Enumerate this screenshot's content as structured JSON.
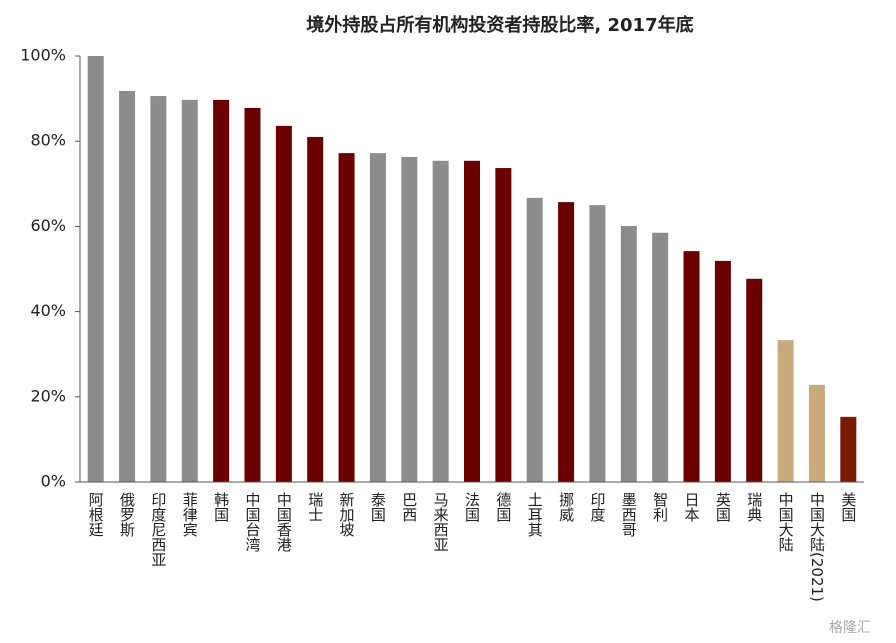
{
  "chart_data": {
    "type": "bar",
    "title": "境外持股占所有机构投资者持股比率, 2017年底",
    "categories": [
      "阿根廷",
      "俄罗斯",
      "印度尼西亚",
      "菲律宾",
      "韩国",
      "中国台湾",
      "中国香港",
      "瑞士",
      "新加坡",
      "泰国",
      "巴西",
      "马来西亚",
      "法国",
      "德国",
      "土耳其",
      "挪威",
      "印度",
      "墨西哥",
      "智利",
      "日本",
      "英国",
      "瑞典",
      "中国大陆",
      "中国大陆(2021)",
      "美国"
    ],
    "values": [
      100,
      91.8,
      90.6,
      89.7,
      89.7,
      87.8,
      83.6,
      81,
      77.2,
      77.2,
      76.3,
      75.4,
      75.4,
      73.7,
      66.7,
      65.7,
      65,
      60.1,
      58.5,
      54.2,
      51.9,
      47.7,
      33.3,
      22.8,
      15.3
    ],
    "colors": [
      "#8c8c8c",
      "#8c8c8c",
      "#8c8c8c",
      "#8c8c8c",
      "#6b0000",
      "#6b0000",
      "#6b0000",
      "#6b0000",
      "#6b0000",
      "#8c8c8c",
      "#8c8c8c",
      "#8c8c8c",
      "#6b0000",
      "#6b0000",
      "#8c8c8c",
      "#6b0000",
      "#8c8c8c",
      "#8c8c8c",
      "#8c8c8c",
      "#6b0000",
      "#6b0000",
      "#6b0000",
      "#c9aa7c",
      "#c9aa7c",
      "#7a1a00"
    ],
    "ylim": [
      0,
      100
    ],
    "yticks": [
      {
        "value": 0,
        "label": "0%"
      },
      {
        "value": 20,
        "label": "20%"
      },
      {
        "value": 40,
        "label": "40%"
      },
      {
        "value": 60,
        "label": "60%"
      },
      {
        "value": 80,
        "label": "80%"
      },
      {
        "value": 100,
        "label": "100%"
      }
    ],
    "grid": false,
    "watermark": "格隆汇"
  }
}
